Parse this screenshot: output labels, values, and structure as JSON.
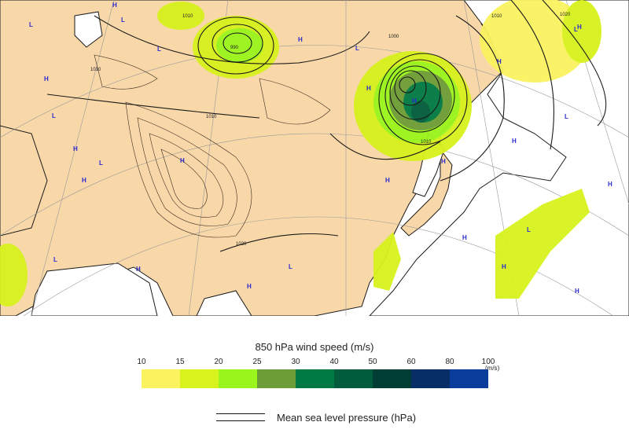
{
  "map": {
    "colors": {
      "land": "#f8d7a8",
      "sea": "#ffffff",
      "outside": "#ffffff",
      "coast": "#1a1a1a",
      "grid": "#9a9a9a",
      "isobar": "#1a1a1a",
      "pressure_marker": "#2a2ad0"
    },
    "markers": {
      "high": "H",
      "low": "L"
    },
    "isobar_values": [
      "1010",
      "990",
      "1000",
      "1010",
      "1010",
      "1010",
      "1020",
      "1020",
      "1010"
    ]
  },
  "legend": {
    "title": "850 hPa wind speed (m/s)",
    "unit": "m/s",
    "ticks": [
      "10",
      "15",
      "20",
      "25",
      "30",
      "40",
      "50",
      "60",
      "80",
      "100"
    ],
    "colors": [
      "#faf35f",
      "#d7f21c",
      "#9af51c",
      "#6c9d37",
      "#007a44",
      "#005c3d",
      "#003d35",
      "#072e66",
      "#0a3c9c"
    ],
    "isobar_label": "Mean sea level pressure (hPa)"
  }
}
